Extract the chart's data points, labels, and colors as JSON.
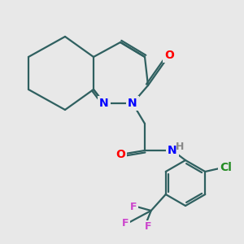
{
  "background_color": "#e8e8e8",
  "bond_color": "#2f6060",
  "bond_width": 1.6,
  "atom_colors": {
    "O": "#ff0000",
    "N": "#0000ff",
    "Cl": "#228b22",
    "F": "#cc44cc",
    "H": "#888888",
    "C": "#2f6060"
  },
  "font_size_atom": 10,
  "font_size_small": 9,
  "font_size_h": 9,
  "figsize": [
    3.0,
    3.0
  ],
  "dpi": 100
}
